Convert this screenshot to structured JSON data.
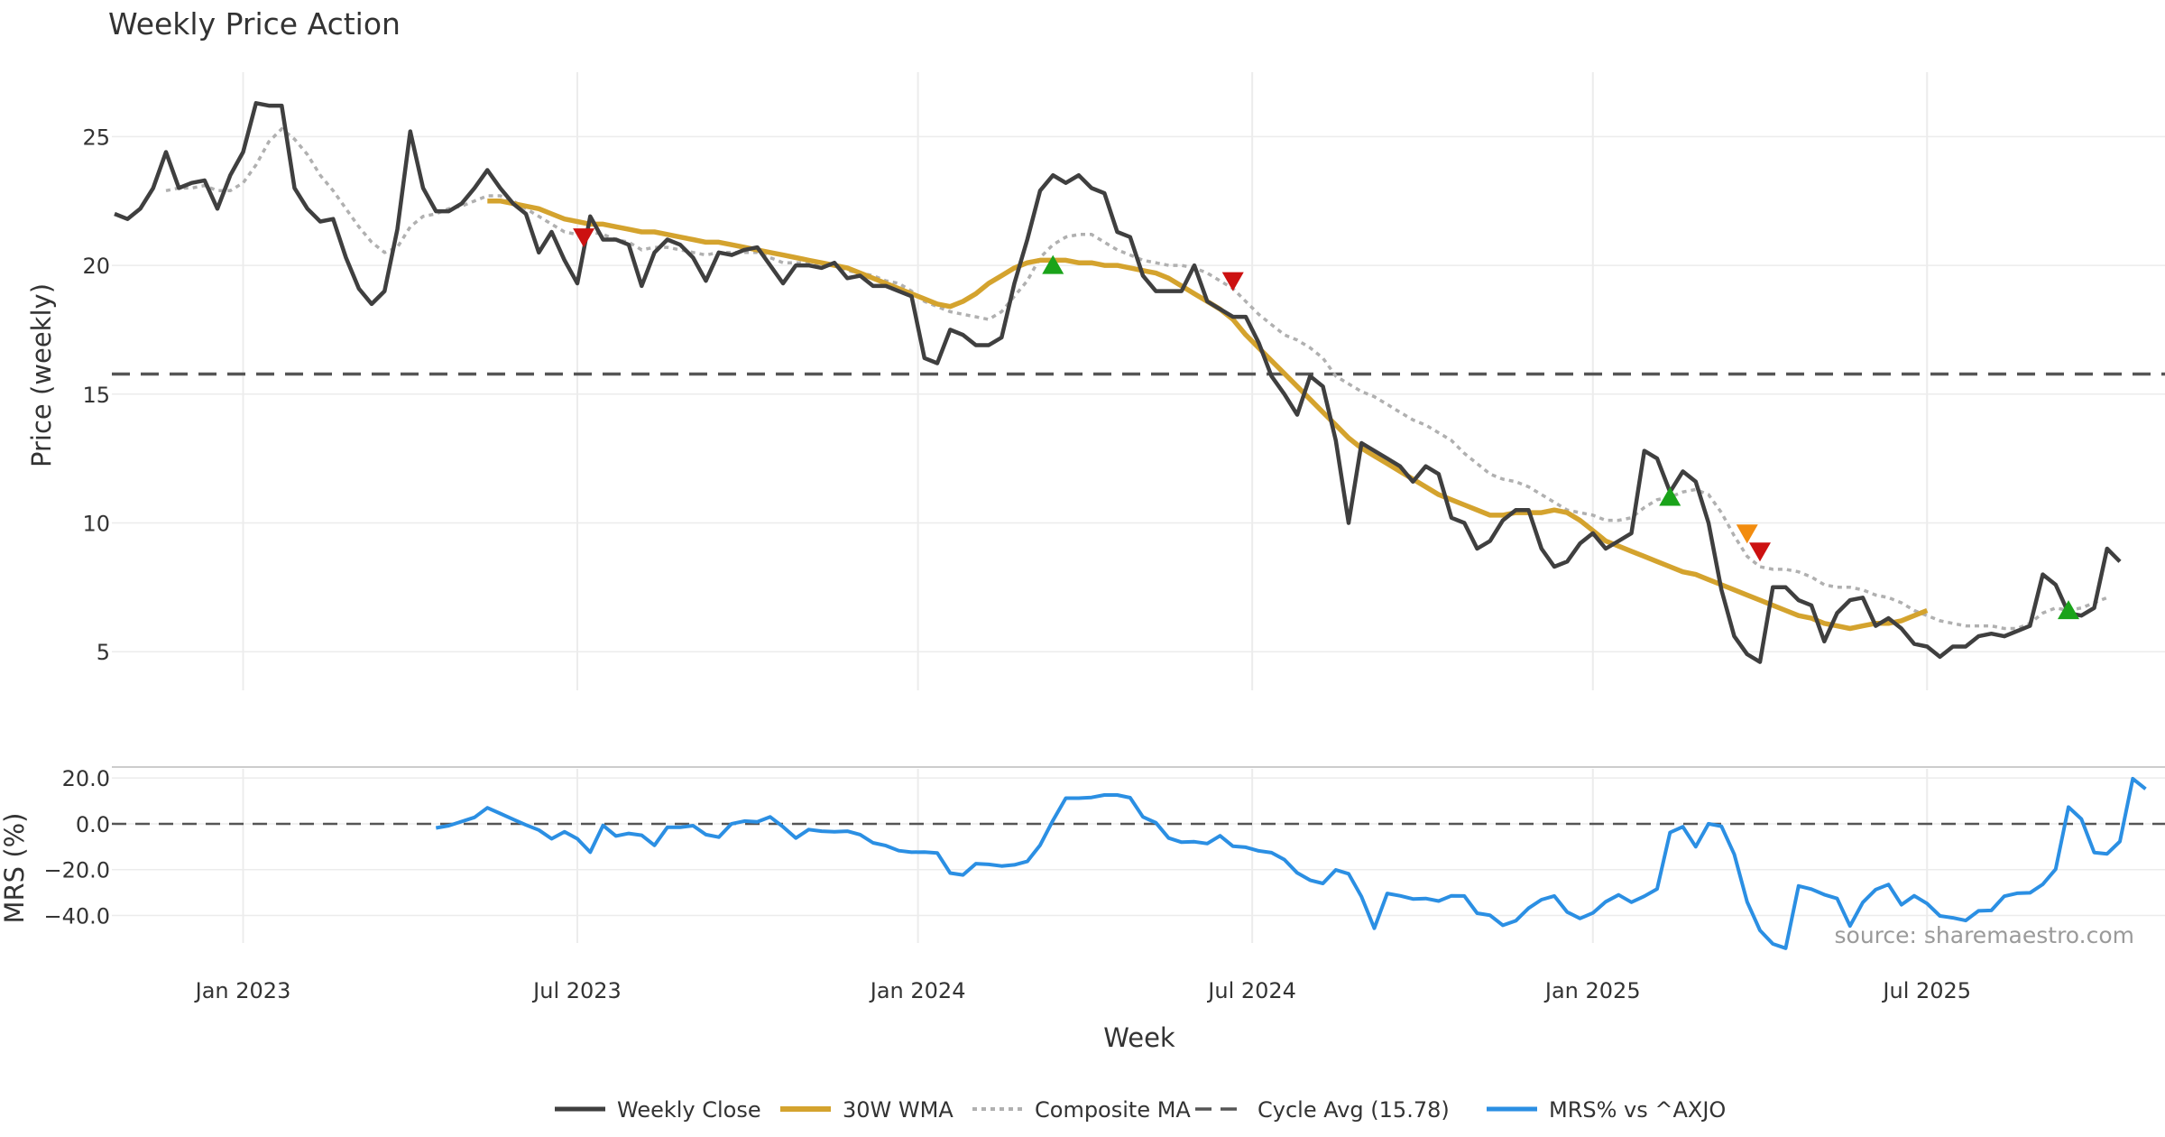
{
  "chart_data": {
    "type": "line",
    "title": "Weekly Price Action",
    "xlabel": "Week",
    "source": "source: sharemaestro.com",
    "colors": {
      "close": "#3f3f3f",
      "wma": "#d4a32e",
      "composite": "#b0b0b0",
      "cycle": "#555555",
      "mrs": "#2b8fe3",
      "buy": "#1aa31a",
      "sell": "#cc1111",
      "warn": "#f28c0f",
      "grid": "#ececec"
    },
    "x_ticks": [
      {
        "label": "Jan 2023",
        "week": 10
      },
      {
        "label": "Jul 2023",
        "week": 36
      },
      {
        "label": "Jan 2024",
        "week": 62.5
      },
      {
        "label": "Jul 2024",
        "week": 88.5
      },
      {
        "label": "Jan 2025",
        "week": 115
      },
      {
        "label": "Jul 2025",
        "week": 141
      }
    ],
    "price_panel": {
      "ylabel": "Price (weekly)",
      "ylim": [
        3.5,
        27.5
      ],
      "y_ticks": [
        5,
        10,
        15,
        20,
        25
      ],
      "cycle_avg": 15.78,
      "close": [
        22,
        21.8,
        22.2,
        23,
        24.4,
        23,
        23.2,
        23.3,
        22.2,
        23.5,
        24.4,
        26.3,
        26.2,
        26.2,
        23,
        22.2,
        21.7,
        21.8,
        20.3,
        19.1,
        18.5,
        19,
        21.4,
        25.2,
        23,
        22.1,
        22.1,
        22.4,
        23,
        23.7,
        23,
        22.4,
        22,
        20.5,
        21.3,
        20.2,
        19.3,
        21.9,
        21,
        21,
        20.8,
        19.2,
        20.5,
        21,
        20.8,
        20.3,
        19.4,
        20.5,
        20.4,
        20.6,
        20.7,
        20,
        19.3,
        20,
        20,
        19.9,
        20.1,
        19.5,
        19.6,
        19.2,
        19.2,
        19,
        18.8,
        16.4,
        16.2,
        17.5,
        17.3,
        16.9,
        16.9,
        17.2,
        19.3,
        21,
        22.9,
        23.5,
        23.2,
        23.5,
        23,
        22.8,
        21.3,
        21.1,
        19.6,
        19,
        19,
        19,
        20,
        18.6,
        18.3,
        18,
        18,
        17,
        15.7,
        15,
        14.2,
        15.7,
        15.3,
        13.2,
        10,
        13.1,
        12.8,
        12.5,
        12.2,
        11.6,
        12.2,
        11.9,
        10.2,
        10,
        9,
        9.3,
        10.1,
        10.5,
        10.5,
        9,
        8.3,
        8.5,
        9.2,
        9.6,
        9,
        9.3,
        9.6,
        12.8,
        12.5,
        11.2,
        12,
        11.6,
        10,
        7.4,
        5.6,
        4.9,
        4.6,
        7.5,
        7.5,
        7,
        6.8,
        5.4,
        6.5,
        7,
        7.1,
        6,
        6.3,
        5.9,
        5.3,
        5.2,
        4.8,
        5.2,
        5.2,
        5.6,
        5.7,
        5.6,
        5.8,
        6,
        8,
        7.6,
        6.5,
        6.4,
        6.7,
        9,
        8.5
      ],
      "wma_start": 29,
      "wma": [
        22.5,
        22.5,
        22.4,
        22.3,
        22.2,
        22,
        21.8,
        21.7,
        21.6,
        21.6,
        21.5,
        21.4,
        21.3,
        21.3,
        21.2,
        21.1,
        21,
        20.9,
        20.9,
        20.8,
        20.7,
        20.6,
        20.5,
        20.4,
        20.3,
        20.2,
        20.1,
        20,
        19.9,
        19.7,
        19.5,
        19.3,
        19.1,
        18.9,
        18.7,
        18.5,
        18.4,
        18.6,
        18.9,
        19.3,
        19.6,
        19.9,
        20.1,
        20.2,
        20.2,
        20.2,
        20.1,
        20.1,
        20,
        20,
        19.9,
        19.8,
        19.7,
        19.5,
        19.2,
        18.9,
        18.6,
        18.3,
        17.9,
        17.3,
        16.8,
        16.3,
        15.8,
        15.3,
        14.8,
        14.3,
        13.8,
        13.3,
        12.9,
        12.6,
        12.3,
        12,
        11.7,
        11.4,
        11.1,
        10.9,
        10.7,
        10.5,
        10.3,
        10.3,
        10.4,
        10.4,
        10.4,
        10.5,
        10.4,
        10.1,
        9.7,
        9.3,
        9.1,
        8.9,
        8.7,
        8.5,
        8.3,
        8.1,
        8,
        7.8,
        7.6,
        7.4,
        7.2,
        7,
        6.8,
        6.6,
        6.4,
        6.3,
        6.1,
        6,
        5.9,
        6,
        6.1,
        6.1,
        6.2,
        6.4,
        6.6
      ]
    },
    "composite_ma": [
      null,
      null,
      null,
      null,
      22.9,
      23,
      23,
      23.1,
      22.9,
      22.9,
      23.2,
      23.9,
      24.8,
      25.3,
      24.9,
      24.3,
      23.5,
      22.9,
      22.2,
      21.5,
      20.9,
      20.5,
      20.7,
      21.5,
      21.9,
      22,
      22.2,
      22.3,
      22.5,
      22.7,
      22.7,
      22.5,
      22.2,
      21.9,
      21.6,
      21.3,
      21.2,
      21.3,
      21.2,
      21,
      20.9,
      20.6,
      20.7,
      20.7,
      20.6,
      20.5,
      20.4,
      20.5,
      20.5,
      20.5,
      20.5,
      20.3,
      20.1,
      20.1,
      20.1,
      20,
      20,
      19.8,
      19.7,
      19.6,
      19.4,
      19.3,
      19,
      18.6,
      18.4,
      18.2,
      18.1,
      18,
      17.9,
      18.2,
      18.8,
      19.4,
      20.3,
      20.8,
      21.1,
      21.2,
      21.2,
      20.9,
      20.6,
      20.4,
      20.2,
      20.1,
      20,
      20,
      19.9,
      19.7,
      19.4,
      19.1,
      18.6,
      18.1,
      17.7,
      17.3,
      17.1,
      16.8,
      16.4,
      15.7,
      15.4,
      15.1,
      14.9,
      14.6,
      14.3,
      14,
      13.8,
      13.5,
      13.2,
      12.7,
      12.3,
      11.9,
      11.7,
      11.6,
      11.4,
      11.1,
      10.8,
      10.5,
      10.4,
      10.3,
      10.1,
      10.1,
      10.2,
      10.6,
      10.9,
      11,
      11.2,
      11.3,
      11.1,
      10.4,
      9.5,
      8.7,
      8.3,
      8.2,
      8.2,
      8.1,
      7.9,
      7.6,
      7.5,
      7.5,
      7.4,
      7.2,
      7.1,
      6.9,
      6.6,
      6.4,
      6.2,
      6.1,
      6,
      6,
      6,
      5.9,
      5.9,
      6.1,
      6.5,
      6.7,
      6.6,
      6.7,
      6.9,
      7.1
    ],
    "signals": [
      {
        "week": 36.5,
        "price": 21.1,
        "type": "sell"
      },
      {
        "week": 73,
        "price": 20,
        "type": "buy"
      },
      {
        "week": 87,
        "price": 19.4,
        "type": "sell"
      },
      {
        "week": 121,
        "price": 11,
        "type": "buy"
      },
      {
        "week": 127,
        "price": 9.6,
        "type": "warn"
      },
      {
        "week": 128,
        "price": 8.9,
        "type": "sell"
      },
      {
        "week": 152,
        "price": 6.6,
        "type": "buy"
      }
    ],
    "mrs_panel": {
      "ylabel": "MRS (%)",
      "ylim": [
        -52,
        24
      ],
      "y_ticks": [
        20,
        0,
        -20,
        -40
      ],
      "y_tick_labels": [
        "20.0",
        "0.0",
        "−20.0",
        "−40.0"
      ],
      "start_week": 25,
      "mrs": [
        -1.8,
        -0.8,
        1,
        2.8,
        7,
        4.5,
        2,
        -0.5,
        -2.7,
        -6.5,
        -3.5,
        -6.5,
        -12.4,
        -0.7,
        -5.3,
        -4.2,
        -5,
        -9.4,
        -1.5,
        -1.5,
        -0.8,
        -4.7,
        -5.8,
        0,
        1.2,
        0.9,
        3,
        -1.3,
        -6.2,
        -2.5,
        -3.2,
        -3.5,
        -3.2,
        -4.7,
        -8.3,
        -9.5,
        -11.7,
        -12.4,
        -12.3,
        -12.7,
        -21.5,
        -22.3,
        -17.4,
        -17.7,
        -18.4,
        -17.9,
        -16.4,
        -9.3,
        1.5,
        11.2,
        11.2,
        11.5,
        12.6,
        12.6,
        11.4,
        3,
        0.5,
        -6.2,
        -8,
        -7.8,
        -8.6,
        -5.2,
        -9.8,
        -10.2,
        -11.8,
        -12.6,
        -15.6,
        -21.4,
        -24.6,
        -26,
        -20.1,
        -21.8,
        -31.8,
        -45.6,
        -30.4,
        -31.4,
        -32.8,
        -32.6,
        -33.7,
        -31.4,
        -31.5,
        -39,
        -39.9,
        -44.3,
        -42.3,
        -36.8,
        -33.1,
        -31.5,
        -38.5,
        -41.3,
        -38.9,
        -34,
        -31,
        -34.2,
        -31.6,
        -28.4,
        -3.8,
        -1.3,
        -10,
        0,
        -1.1,
        -13.3,
        -34.1,
        -46.5,
        -52.4,
        -54.3,
        -27.1,
        -28.5,
        -30.9,
        -32.6,
        -44.6,
        -34.3,
        -28.7,
        -26.5,
        -35.3,
        -31.4,
        -34.8,
        -40.2,
        -41,
        -42.2,
        -38,
        -37.8,
        -31.6,
        -30.3,
        -30.1,
        -26.4,
        -19.8,
        7.3,
        2.1,
        -12.5,
        -13.1,
        -7.7,
        19.7,
        15.2
      ]
    },
    "legend": [
      {
        "label": "Weekly Close",
        "style": "close"
      },
      {
        "label": "30W WMA",
        "style": "wma"
      },
      {
        "label": "Composite MA",
        "style": "composite"
      },
      {
        "label": "Cycle Avg (15.78)",
        "style": "cycle"
      },
      {
        "label": "MRS% vs ^AXJO",
        "style": "mrs"
      }
    ]
  }
}
